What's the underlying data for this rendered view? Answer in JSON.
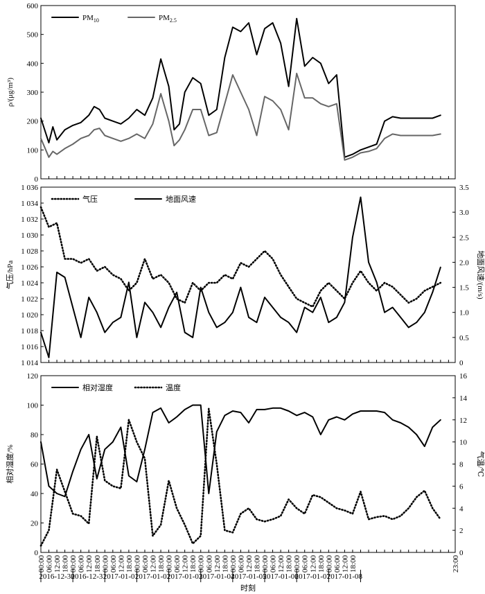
{
  "chart_data": [
    {
      "type": "line",
      "title": "",
      "xlabel": "",
      "ylabel": "ρ/(μg/m³)",
      "ylim": [
        0,
        600
      ],
      "yticks": [
        "0",
        "100",
        "200",
        "300",
        "400",
        "500",
        "600"
      ],
      "legend_position": "top-left",
      "grid": false,
      "x_hours": [
        0,
        6,
        9,
        12,
        18,
        24,
        30,
        36,
        40,
        44,
        48,
        54,
        60,
        66,
        72,
        78,
        84,
        90,
        96,
        100,
        104,
        108,
        114,
        120,
        126,
        132,
        138,
        144,
        150,
        156,
        162,
        168,
        174,
        180,
        186,
        192,
        198,
        204,
        210,
        216,
        222,
        228,
        234,
        240,
        246,
        252,
        258,
        264,
        270,
        276,
        282,
        288,
        294,
        300
      ],
      "series": [
        {
          "name": "PM10",
          "style": "solid-black",
          "values": [
            210,
            125,
            180,
            135,
            170,
            185,
            195,
            220,
            250,
            240,
            210,
            200,
            190,
            210,
            240,
            220,
            280,
            415,
            320,
            170,
            190,
            300,
            350,
            330,
            220,
            240,
            420,
            525,
            510,
            540,
            430,
            520,
            540,
            470,
            320,
            555,
            390,
            420,
            400,
            330,
            360,
            75,
            85,
            100,
            110,
            120,
            200,
            215,
            210,
            210,
            210,
            210,
            210,
            220
          ]
        },
        {
          "name": "PM2.5",
          "style": "solid-gray",
          "values": [
            140,
            75,
            95,
            85,
            105,
            120,
            140,
            150,
            170,
            175,
            150,
            140,
            130,
            140,
            155,
            140,
            190,
            295,
            200,
            115,
            135,
            170,
            240,
            240,
            150,
            160,
            260,
            360,
            300,
            240,
            150,
            285,
            270,
            240,
            170,
            365,
            280,
            280,
            260,
            250,
            260,
            65,
            75,
            90,
            95,
            105,
            140,
            155,
            150,
            150,
            150,
            150,
            150,
            155
          ]
        }
      ]
    },
    {
      "type": "line",
      "title": "",
      "ylabel": "气压/hPa",
      "y2label": "地面风速/(m/s)",
      "ylim": [
        1014,
        1036
      ],
      "y2lim": [
        0,
        3.5
      ],
      "yticks": [
        "1 014",
        "1 016",
        "1 018",
        "1 020",
        "1 022",
        "1 024",
        "1 026",
        "1 028",
        "1 030",
        "1 032",
        "1 034",
        "1 036"
      ],
      "y2ticks": [
        "0",
        "0.5",
        "1.0",
        "1.5",
        "2.0",
        "2.5",
        "3.0",
        "3.5"
      ],
      "legend_position": "top-left",
      "grid": false,
      "x_hours": [
        0,
        6,
        12,
        18,
        24,
        30,
        36,
        42,
        48,
        54,
        60,
        66,
        72,
        78,
        84,
        90,
        96,
        102,
        108,
        114,
        120,
        126,
        132,
        138,
        144,
        150,
        156,
        162,
        168,
        174,
        180,
        186,
        192,
        198,
        204,
        210,
        216,
        222,
        228,
        234,
        240,
        246,
        252,
        258,
        264,
        270,
        276,
        282,
        288,
        294,
        300
      ],
      "series": [
        {
          "name": "气压",
          "axis": "left",
          "style": "dotted-black",
          "values": [
            1033.5,
            1031,
            1031.5,
            1027,
            1027,
            1026.5,
            1027,
            1025.5,
            1026,
            1025,
            1024.5,
            1023,
            1024,
            1027,
            1024.5,
            1025,
            1024,
            1022,
            1021.5,
            1024,
            1023,
            1024,
            1024,
            1025,
            1024.5,
            1026.5,
            1026,
            1027,
            1028,
            1027,
            1025,
            1023.5,
            1022,
            1021.5,
            1021,
            1023,
            1024,
            1023,
            1022,
            1024,
            1025.5,
            1024,
            1023,
            1024,
            1023.5,
            1022.5,
            1021.5,
            1022,
            1023,
            1023.5,
            1024
          ]
        },
        {
          "name": "地面风速",
          "axis": "right",
          "style": "solid-black",
          "values": [
            0.6,
            0.1,
            1.8,
            1.7,
            1.1,
            0.5,
            1.3,
            1.0,
            0.6,
            0.8,
            0.9,
            1.6,
            0.5,
            1.2,
            1.0,
            0.7,
            1.1,
            1.4,
            0.6,
            0.5,
            1.5,
            1.0,
            0.7,
            0.8,
            1.0,
            1.5,
            0.9,
            0.8,
            1.3,
            1.1,
            0.9,
            0.8,
            0.6,
            1.1,
            1.0,
            1.3,
            0.8,
            0.9,
            1.2,
            2.5,
            3.3,
            2.0,
            1.6,
            1.0,
            1.1,
            0.9,
            0.7,
            0.8,
            1.0,
            1.4,
            1.9
          ]
        }
      ]
    },
    {
      "type": "line",
      "title": "",
      "xlabel": "时刻",
      "ylabel": "相对湿度/%",
      "y2label": "气温/℃",
      "ylim": [
        0,
        120
      ],
      "y2lim": [
        0,
        16
      ],
      "yticks": [
        "0",
        "20",
        "40",
        "60",
        "80",
        "100",
        "120"
      ],
      "y2ticks": [
        "0",
        "2",
        "4",
        "6",
        "8",
        "10",
        "12",
        "14",
        "16"
      ],
      "legend_position": "top-left",
      "grid": false,
      "x_hours": [
        0,
        6,
        12,
        18,
        24,
        30,
        36,
        42,
        48,
        54,
        60,
        66,
        72,
        78,
        84,
        90,
        96,
        102,
        108,
        114,
        120,
        126,
        132,
        138,
        144,
        150,
        156,
        162,
        168,
        174,
        180,
        186,
        192,
        198,
        204,
        210,
        216,
        222,
        228,
        234,
        240,
        246,
        252,
        258,
        264,
        270,
        276,
        282,
        288,
        294,
        300
      ],
      "series": [
        {
          "name": "相对湿度",
          "axis": "left",
          "style": "solid-black",
          "values": [
            75,
            45,
            40,
            38,
            55,
            70,
            80,
            50,
            70,
            75,
            85,
            52,
            48,
            70,
            95,
            98,
            88,
            92,
            97,
            100,
            100,
            40,
            82,
            93,
            96,
            95,
            88,
            97,
            97,
            98,
            98,
            96,
            93,
            95,
            92,
            80,
            90,
            92,
            90,
            94,
            96,
            96,
            96,
            95,
            90,
            88,
            85,
            80,
            72,
            85,
            90
          ]
        },
        {
          "name": "温度",
          "axis": "right",
          "style": "dotted-black",
          "values": [
            0.6,
            2.0,
            7.5,
            5.5,
            3.5,
            3.3,
            2.6,
            10.5,
            6.5,
            6.0,
            5.8,
            12.0,
            10.0,
            8.5,
            1.5,
            2.5,
            6.5,
            4.0,
            2.5,
            0.8,
            1.5,
            13.0,
            8.0,
            2.0,
            1.8,
            3.5,
            4.0,
            3.0,
            2.8,
            3.0,
            3.3,
            4.8,
            4.0,
            3.5,
            5.2,
            5.0,
            4.5,
            4.0,
            3.8,
            3.5,
            5.5,
            3.0,
            3.2,
            3.3,
            3.0,
            3.3,
            4.0,
            5.0,
            5.6,
            4.0,
            3.0
          ]
        }
      ]
    }
  ],
  "x_axis": {
    "tick_labels": [
      "00:00",
      "06:00",
      "12:00",
      "18:00",
      "00:00",
      "06:00",
      "12:00",
      "18:00",
      "00:00",
      "06:00",
      "12:00",
      "18:00",
      "00:00",
      "06:00",
      "12:00",
      "18:00",
      "00:00",
      "06:00",
      "12:00",
      "18:00",
      "00:00",
      "06:00",
      "12:00",
      "18:00",
      "00:00",
      "06:00",
      "12:00",
      "18:00",
      "00:00",
      "06:00",
      "12:00",
      "18:00",
      "00:00",
      "06:00",
      "12:00",
      "18:00",
      "00:00",
      "06:00",
      "12:00",
      "18:00",
      "23:00"
    ],
    "date_labels": [
      "2016-12-30",
      "2016-12-31",
      "2017-01-01",
      "2017-01-02",
      "2017-01-03",
      "2017-01-04",
      "2017-01-05",
      "2017-01-06",
      "2017-01-07",
      "2017-01-08"
    ],
    "title": "时刻"
  }
}
